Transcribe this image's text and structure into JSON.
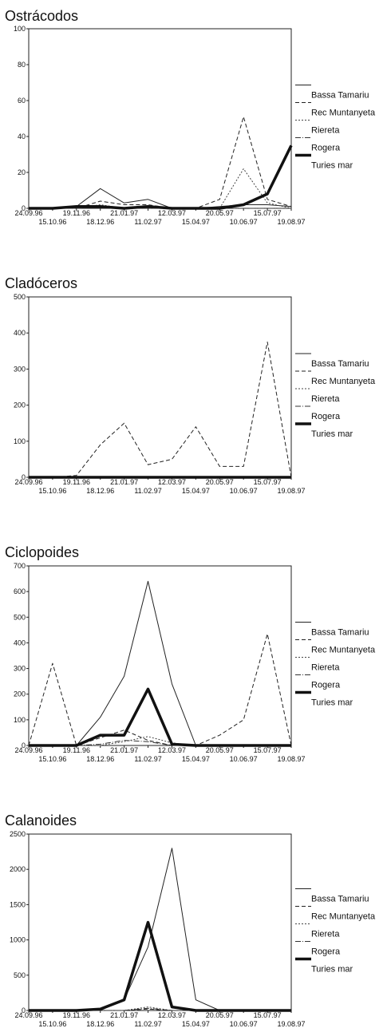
{
  "series_styles": {
    "Bassa Tamariu": {
      "stroke": "#222222",
      "width": 1,
      "dash": ""
    },
    "Rec Muntanyeta": {
      "stroke": "#222222",
      "width": 1,
      "dash": "5,3"
    },
    "Riereta": {
      "stroke": "#444444",
      "width": 1,
      "dash": "2,2"
    },
    "Rogera": {
      "stroke": "#333333",
      "width": 1,
      "dash": "7,2,1,2"
    },
    "Turies mar": {
      "stroke": "#111111",
      "width": 3.5,
      "dash": ""
    }
  },
  "chart_data": [
    {
      "type": "line",
      "title": "Ostrácodos",
      "x": [
        "24.09.96",
        "15.10.96",
        "19.11.96",
        "18.12.96",
        "21.01.97",
        "11.02.97",
        "12.03.97",
        "15.04.97",
        "20.05.97",
        "10.06.97",
        "15.07.97",
        "19.08.97"
      ],
      "ylim": [
        0,
        100
      ],
      "yticks": [
        0,
        20,
        40,
        60,
        80,
        100
      ],
      "legend": [
        "Bassa Tamariu",
        "Rec Muntanyeta",
        "Riereta",
        "Rogera",
        "Turies mar"
      ],
      "series": [
        {
          "name": "Bassa Tamariu",
          "values": [
            0,
            0,
            1,
            11,
            3,
            5,
            0,
            0,
            1,
            2,
            2,
            1
          ]
        },
        {
          "name": "Rec Muntanyeta",
          "values": [
            0,
            0,
            0,
            4,
            2,
            2,
            0,
            0,
            5,
            51,
            5,
            1
          ]
        },
        {
          "name": "Riereta",
          "values": [
            0,
            0,
            0,
            2,
            0,
            0,
            0,
            0,
            0,
            22,
            3,
            0
          ]
        },
        {
          "name": "Rogera",
          "values": [
            0,
            0,
            0,
            1,
            0,
            0,
            0,
            0,
            0,
            0,
            0,
            0
          ]
        },
        {
          "name": "Turies mar",
          "values": [
            0,
            0,
            1,
            1,
            0,
            1,
            0,
            0,
            0,
            2,
            8,
            35
          ]
        }
      ]
    },
    {
      "type": "line",
      "title": "Cladóceros",
      "x": [
        "24.09.96",
        "15.10.96",
        "19.11.96",
        "18.12.96",
        "21.01.97",
        "11.02.97",
        "12.03.97",
        "15.04.97",
        "20.05.97",
        "10.06.97",
        "15.07.97",
        "19.08.97"
      ],
      "ylim": [
        0,
        500
      ],
      "yticks": [
        0,
        100,
        200,
        300,
        400,
        500
      ],
      "legend": [
        "Bassa Tamariu",
        "Rec Muntanyeta",
        "Riereta",
        "Rogera",
        "Turies mar"
      ],
      "series": [
        {
          "name": "Bassa Tamariu",
          "values": [
            0,
            0,
            0,
            0,
            0,
            0,
            0,
            0,
            0,
            0,
            0,
            0
          ]
        },
        {
          "name": "Rec Muntanyeta",
          "values": [
            0,
            0,
            5,
            90,
            150,
            35,
            50,
            140,
            30,
            30,
            375,
            0
          ]
        },
        {
          "name": "Riereta",
          "values": [
            0,
            0,
            0,
            0,
            0,
            0,
            0,
            0,
            0,
            0,
            0,
            0
          ]
        },
        {
          "name": "Rogera",
          "values": [
            0,
            0,
            0,
            0,
            0,
            0,
            0,
            0,
            0,
            0,
            0,
            0
          ]
        },
        {
          "name": "Turies mar",
          "values": [
            0,
            0,
            0,
            0,
            0,
            0,
            0,
            0,
            0,
            0,
            0,
            0
          ]
        }
      ]
    },
    {
      "type": "line",
      "title": "Ciclopoides",
      "x": [
        "24.09.96",
        "15.10.96",
        "19.11.96",
        "18.12.96",
        "21.01.97",
        "11.02.97",
        "12.03.97",
        "15.04.97",
        "20.05.97",
        "10.06.97",
        "15.07.97",
        "19.08.97"
      ],
      "ylim": [
        0,
        700
      ],
      "yticks": [
        0,
        100,
        200,
        300,
        400,
        500,
        600,
        700
      ],
      "legend": [
        "Bassa Tamariu",
        "Rec Muntanyeta",
        "Riereta",
        "Rogera",
        "Turies mar"
      ],
      "series": [
        {
          "name": "Bassa Tamariu",
          "values": [
            0,
            0,
            0,
            110,
            270,
            640,
            240,
            0,
            0,
            0,
            0,
            0
          ]
        },
        {
          "name": "Rec Muntanyeta",
          "values": [
            0,
            320,
            0,
            30,
            60,
            20,
            0,
            0,
            40,
            100,
            435,
            0
          ]
        },
        {
          "name": "Riereta",
          "values": [
            0,
            0,
            0,
            0,
            15,
            35,
            10,
            0,
            0,
            0,
            0,
            0
          ]
        },
        {
          "name": "Rogera",
          "values": [
            0,
            0,
            0,
            5,
            20,
            15,
            0,
            0,
            0,
            0,
            0,
            0
          ]
        },
        {
          "name": "Turies mar",
          "values": [
            0,
            0,
            0,
            40,
            40,
            220,
            5,
            0,
            0,
            0,
            0,
            0
          ]
        }
      ]
    },
    {
      "type": "line",
      "title": "Calanoides",
      "x": [
        "24.09.96",
        "15.10.96",
        "19.11.96",
        "18.12.96",
        "21.01.97",
        "11.02.97",
        "12.03.97",
        "15.04.97",
        "20.05.97",
        "10.06.97",
        "15.07.97",
        "19.08.97"
      ],
      "ylim": [
        0,
        2500
      ],
      "yticks": [
        0,
        500,
        1000,
        1500,
        2000,
        2500
      ],
      "legend": [
        "Bassa Tamariu",
        "Rec Muntanyeta",
        "Riereta",
        "Rogera",
        "Turies mar"
      ],
      "series": [
        {
          "name": "Bassa Tamariu",
          "values": [
            0,
            0,
            0,
            0,
            150,
            900,
            2300,
            150,
            0,
            0,
            0,
            0
          ]
        },
        {
          "name": "Rec Muntanyeta",
          "values": [
            0,
            0,
            0,
            0,
            0,
            20,
            0,
            0,
            0,
            0,
            0,
            0
          ]
        },
        {
          "name": "Riereta",
          "values": [
            0,
            0,
            0,
            0,
            0,
            50,
            0,
            0,
            0,
            0,
            0,
            0
          ]
        },
        {
          "name": "Rogera",
          "values": [
            0,
            0,
            0,
            0,
            0,
            30,
            0,
            0,
            0,
            0,
            0,
            0
          ]
        },
        {
          "name": "Turies mar",
          "values": [
            0,
            0,
            0,
            20,
            150,
            1250,
            50,
            0,
            0,
            0,
            0,
            0
          ]
        }
      ]
    }
  ]
}
